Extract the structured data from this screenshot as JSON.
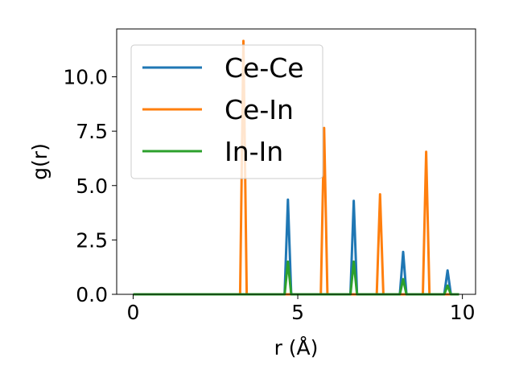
{
  "chart_data": {
    "type": "line",
    "title": "",
    "xlabel": "r (Å)",
    "ylabel": "g(r)",
    "xlim": [
      -0.5,
      10.4
    ],
    "ylim": [
      0,
      12.2
    ],
    "xticks": [
      0,
      5,
      10
    ],
    "xtick_labels": [
      "0",
      "5",
      "10"
    ],
    "yticks": [
      0,
      2.5,
      5,
      7.5,
      10
    ],
    "ytick_labels": [
      "0.0",
      "2.5",
      "5.0",
      "7.5",
      "10.0"
    ],
    "grid": false,
    "legend_position": "top-left",
    "series": [
      {
        "name": "Ce-Ce",
        "color": "#1f77b4",
        "x": [
          0,
          4.6,
          4.7,
          4.8,
          6.6,
          6.7,
          6.8,
          8.1,
          8.2,
          8.3,
          9.45,
          9.55,
          9.65,
          9.9
        ],
        "y": [
          0,
          0,
          4.35,
          0,
          0,
          4.3,
          0,
          0,
          1.95,
          0,
          0,
          1.1,
          0,
          0
        ]
      },
      {
        "name": "Ce-In",
        "color": "#ff7f0e",
        "x": [
          0,
          3.25,
          3.35,
          3.45,
          5.7,
          5.8,
          5.9,
          7.4,
          7.5,
          7.6,
          8.8,
          8.9,
          9.0,
          9.9
        ],
        "y": [
          0,
          0,
          11.65,
          0,
          0,
          7.65,
          0,
          0,
          4.6,
          0,
          0,
          6.55,
          0,
          0
        ]
      },
      {
        "name": "In-In",
        "color": "#2ca02c",
        "x": [
          0,
          4.6,
          4.7,
          4.8,
          6.6,
          6.7,
          6.8,
          8.1,
          8.2,
          8.3,
          9.45,
          9.55,
          9.65,
          9.9
        ],
        "y": [
          0,
          0,
          1.5,
          0,
          0,
          1.5,
          0,
          0,
          0.7,
          0,
          0,
          0.4,
          0,
          0
        ]
      }
    ]
  }
}
